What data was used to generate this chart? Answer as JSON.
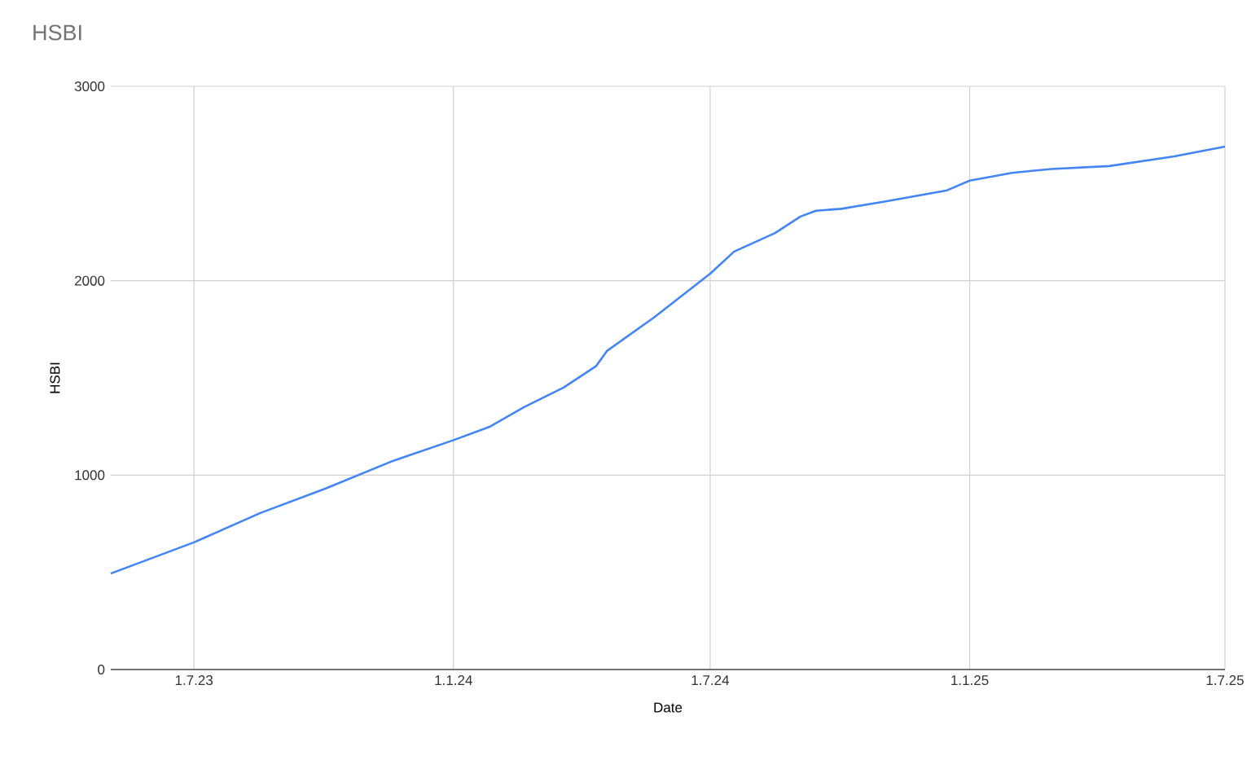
{
  "chart_data": {
    "type": "line",
    "title": "HSBI",
    "xlabel": "Date",
    "ylabel": "HSBI",
    "x": [
      "2023-05-03",
      "2023-07-01",
      "2023-08-17",
      "2023-10-02",
      "2023-11-19",
      "2024-01-01",
      "2024-01-27",
      "2024-02-20",
      "2024-03-19",
      "2024-04-11",
      "2024-04-19",
      "2024-05-22",
      "2024-07-01",
      "2024-07-18",
      "2024-08-16",
      "2024-09-03",
      "2024-09-14",
      "2024-10-02",
      "2024-10-31",
      "2024-12-16",
      "2025-01-01",
      "2025-01-31",
      "2025-02-28",
      "2025-04-10",
      "2025-05-26",
      "2025-07-01"
    ],
    "series": [
      {
        "color": "#4285f4",
        "values": [
          494,
          654,
          805,
          930,
          1073,
          1180,
          1250,
          1350,
          1450,
          1560,
          1640,
          1810,
          2036,
          2150,
          2245,
          2330,
          2360,
          2370,
          2405,
          2465,
          2515,
          2555,
          2575,
          2590,
          2640,
          2690
        ]
      }
    ],
    "xlim": [
      "2023-05-03",
      "2025-07-01"
    ],
    "xticks": [
      {
        "value": "2023-07-01",
        "label": "1.7.23"
      },
      {
        "value": "2024-01-01",
        "label": "1.1.24"
      },
      {
        "value": "2024-07-01",
        "label": "1.7.24"
      },
      {
        "value": "2025-01-01",
        "label": "1.1.25"
      },
      {
        "value": "2025-07-01",
        "label": "1.7.25"
      }
    ],
    "ylim": [
      0,
      3000
    ],
    "yticks": [
      0,
      1000,
      2000,
      3000
    ],
    "grid": true
  }
}
